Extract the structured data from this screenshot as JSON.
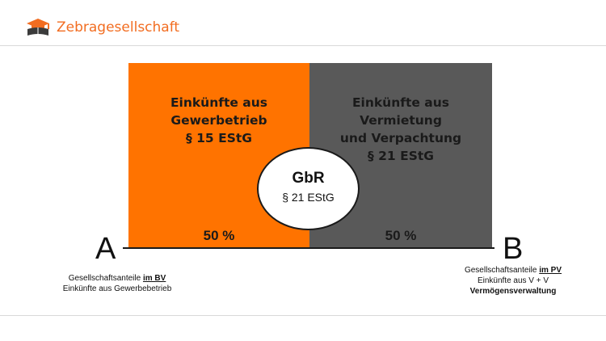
{
  "header": {
    "brand": "Zebragesellschaft",
    "brand_color": "#f26d21",
    "logo_icon": "graduation-cap-book-icon"
  },
  "diagram": {
    "left_box": {
      "color": "#ff7300",
      "title_lines": [
        "Einkünfte aus",
        "Gewerbetrieb",
        "§ 15 EStG"
      ],
      "share": "50 %"
    },
    "right_box": {
      "color": "#595959",
      "title_lines": [
        "Einkünfte aus Vermietung",
        "und Verpachtung",
        "§ 21 EStG"
      ],
      "share": "50 %"
    },
    "center": {
      "title": "GbR",
      "subtitle": "§ 21 EStG"
    },
    "party_a": {
      "label": "A",
      "line1_prefix": "Gesellschaftsanteile ",
      "line1_emph": "im BV",
      "line2": "Einkünfte aus Gewerbebetrieb"
    },
    "party_b": {
      "label": "B",
      "line1_prefix": "Gesellschaftsanteile ",
      "line1_emph": "im PV",
      "line2": "Einkünfte aus V + V",
      "line3": "Vermögensverwaltung"
    }
  }
}
